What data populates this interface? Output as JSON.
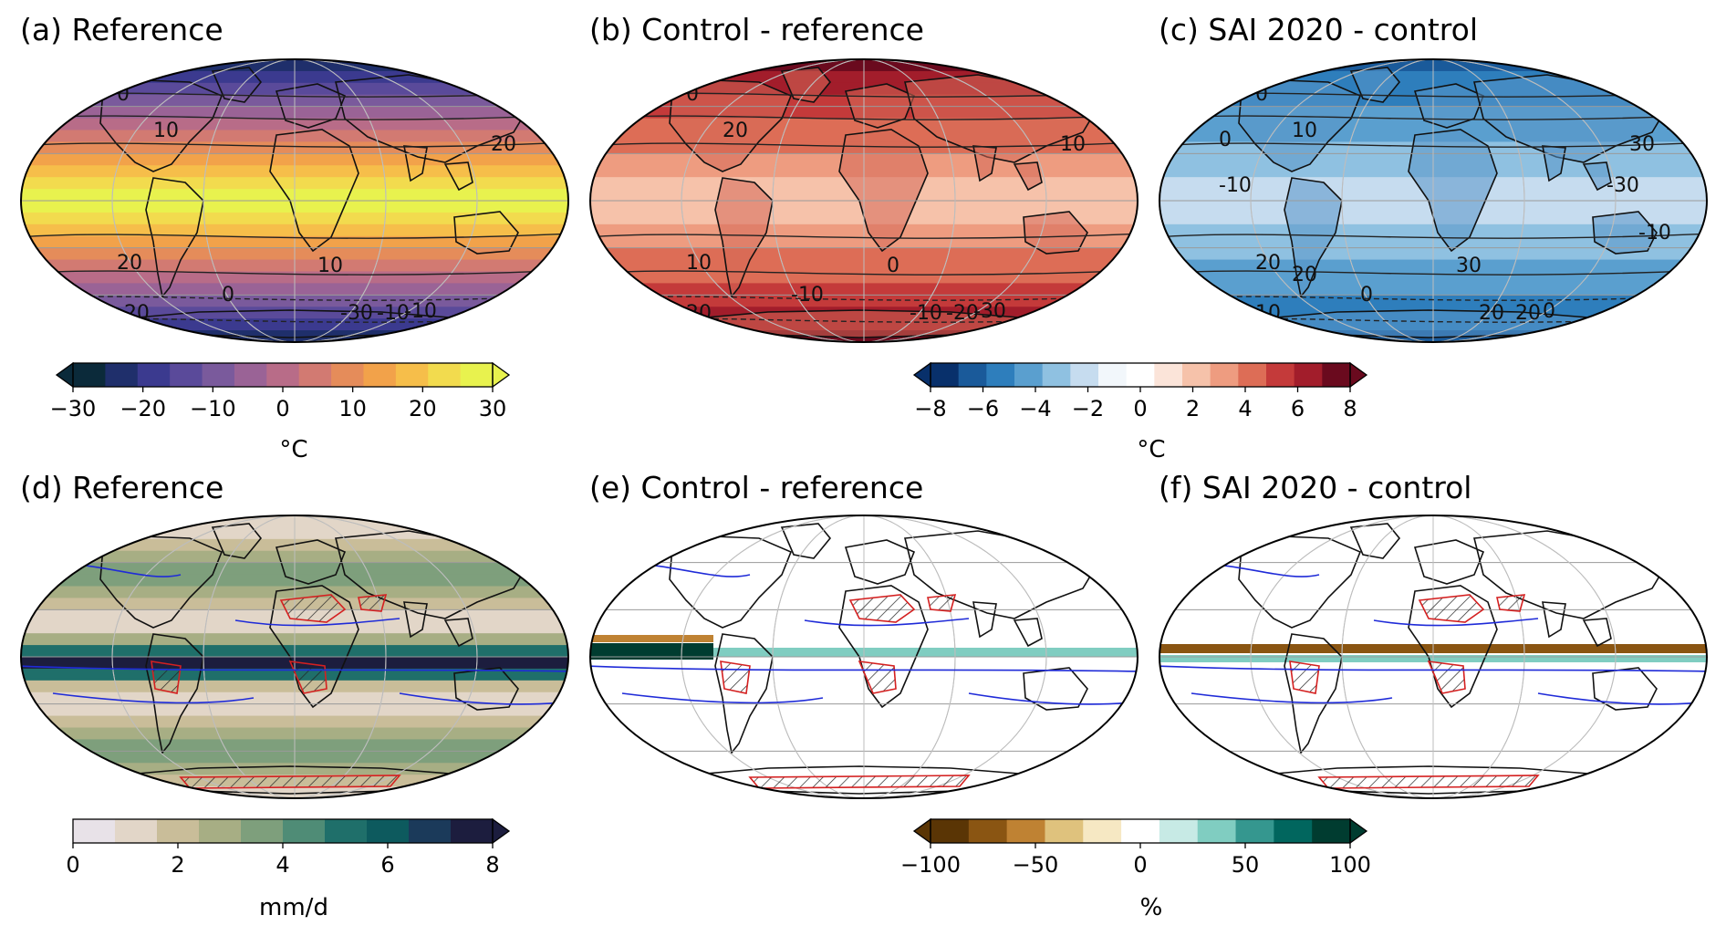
{
  "panels": [
    {
      "id": "a",
      "title": "(a) Reference",
      "field": "temperature",
      "colormap": "thermal",
      "contour_labels": [
        "10",
        "0",
        "10",
        "10",
        "20",
        "20",
        "10",
        "0",
        "-10",
        "-30",
        "-10",
        "-20",
        "30"
      ]
    },
    {
      "id": "b",
      "title": "(b) Control - reference",
      "field": "temperature",
      "colormap": "red",
      "contour_labels": [
        "10",
        "0",
        "20",
        "20",
        "10",
        "10",
        "0",
        "-10",
        "-30",
        "-10",
        "-20",
        "20"
      ]
    },
    {
      "id": "c",
      "title": "(c) SAI 2020 - control",
      "field": "temperature",
      "colormap": "blue",
      "contour_labels": [
        "0",
        "0",
        "10",
        "20",
        "30",
        "20",
        "30",
        "0",
        "0",
        "20",
        "20",
        "10",
        "0",
        "0",
        "-10",
        "-30",
        "-10",
        "20"
      ]
    },
    {
      "id": "d",
      "title": "(d) Reference",
      "field": "precipitation",
      "colormap": "teal",
      "contour_labels": []
    },
    {
      "id": "e",
      "title": "(e) Control - reference",
      "field": "precipitation",
      "colormap": "brbg",
      "contour_labels": []
    },
    {
      "id": "f",
      "title": "(f) SAI 2020 - control",
      "field": "precipitation",
      "colormap": "brbg",
      "contour_labels": []
    }
  ],
  "colorbars": [
    {
      "id": "1",
      "ticks": [
        "−30",
        "−20",
        "−10",
        "0",
        "10",
        "20",
        "30"
      ],
      "unit": "°C",
      "min": -35,
      "max": 35,
      "extend": "both"
    },
    {
      "id": "2",
      "ticks": [
        "−8",
        "−6",
        "−4",
        "−2",
        "0",
        "2",
        "4",
        "6",
        "8"
      ],
      "unit": "°C",
      "min": -8.5,
      "max": 8.5,
      "extend": "both"
    },
    {
      "id": "3",
      "ticks": [
        "0",
        "2",
        "4",
        "6",
        "8"
      ],
      "unit": "mm/d",
      "min": 0,
      "max": 8,
      "extend": "max"
    },
    {
      "id": "4",
      "ticks": [
        "−100",
        "−50",
        "0",
        "50",
        "100"
      ],
      "unit": "%",
      "min": -100,
      "max": 100,
      "extend": "both"
    }
  ],
  "colors": {
    "thermal": [
      "#0b2a3a",
      "#1f2f6b",
      "#3b3a8f",
      "#5a4a9a",
      "#7a5a9c",
      "#9a6396",
      "#b86c88",
      "#d27a72",
      "#e58c5a",
      "#f2a24a",
      "#f6be4a",
      "#f2db4e",
      "#e8f24e"
    ],
    "red": [
      "#fbe4d9",
      "#f6c2aa",
      "#ee9c80",
      "#dd6d56",
      "#c43a3a",
      "#a21d2b",
      "#6a0a1e"
    ],
    "blue": [
      "#08306b",
      "#1a5a9a",
      "#2e7ebc",
      "#5a9fcf",
      "#8fc1e1",
      "#c6dcef",
      "#f2f7fb"
    ],
    "teal": [
      "#e8e2e8",
      "#e2d6c8",
      "#c9bd99",
      "#a7ae84",
      "#7e9f7c",
      "#4f8c76",
      "#1f6f6a",
      "#0d5a5e",
      "#1b3a5a",
      "#1c1d3e"
    ],
    "brbg": [
      "#5a3505",
      "#8a5512",
      "#bf8233",
      "#dfc27d",
      "#f6e8c3",
      "#ffffff",
      "#c7eae5",
      "#80cdc1",
      "#35978f",
      "#01665e",
      "#003c30"
    ],
    "contour_warm": "#d42020",
    "contour_wet": "#1f2bd8",
    "land_outline": "#111111"
  }
}
